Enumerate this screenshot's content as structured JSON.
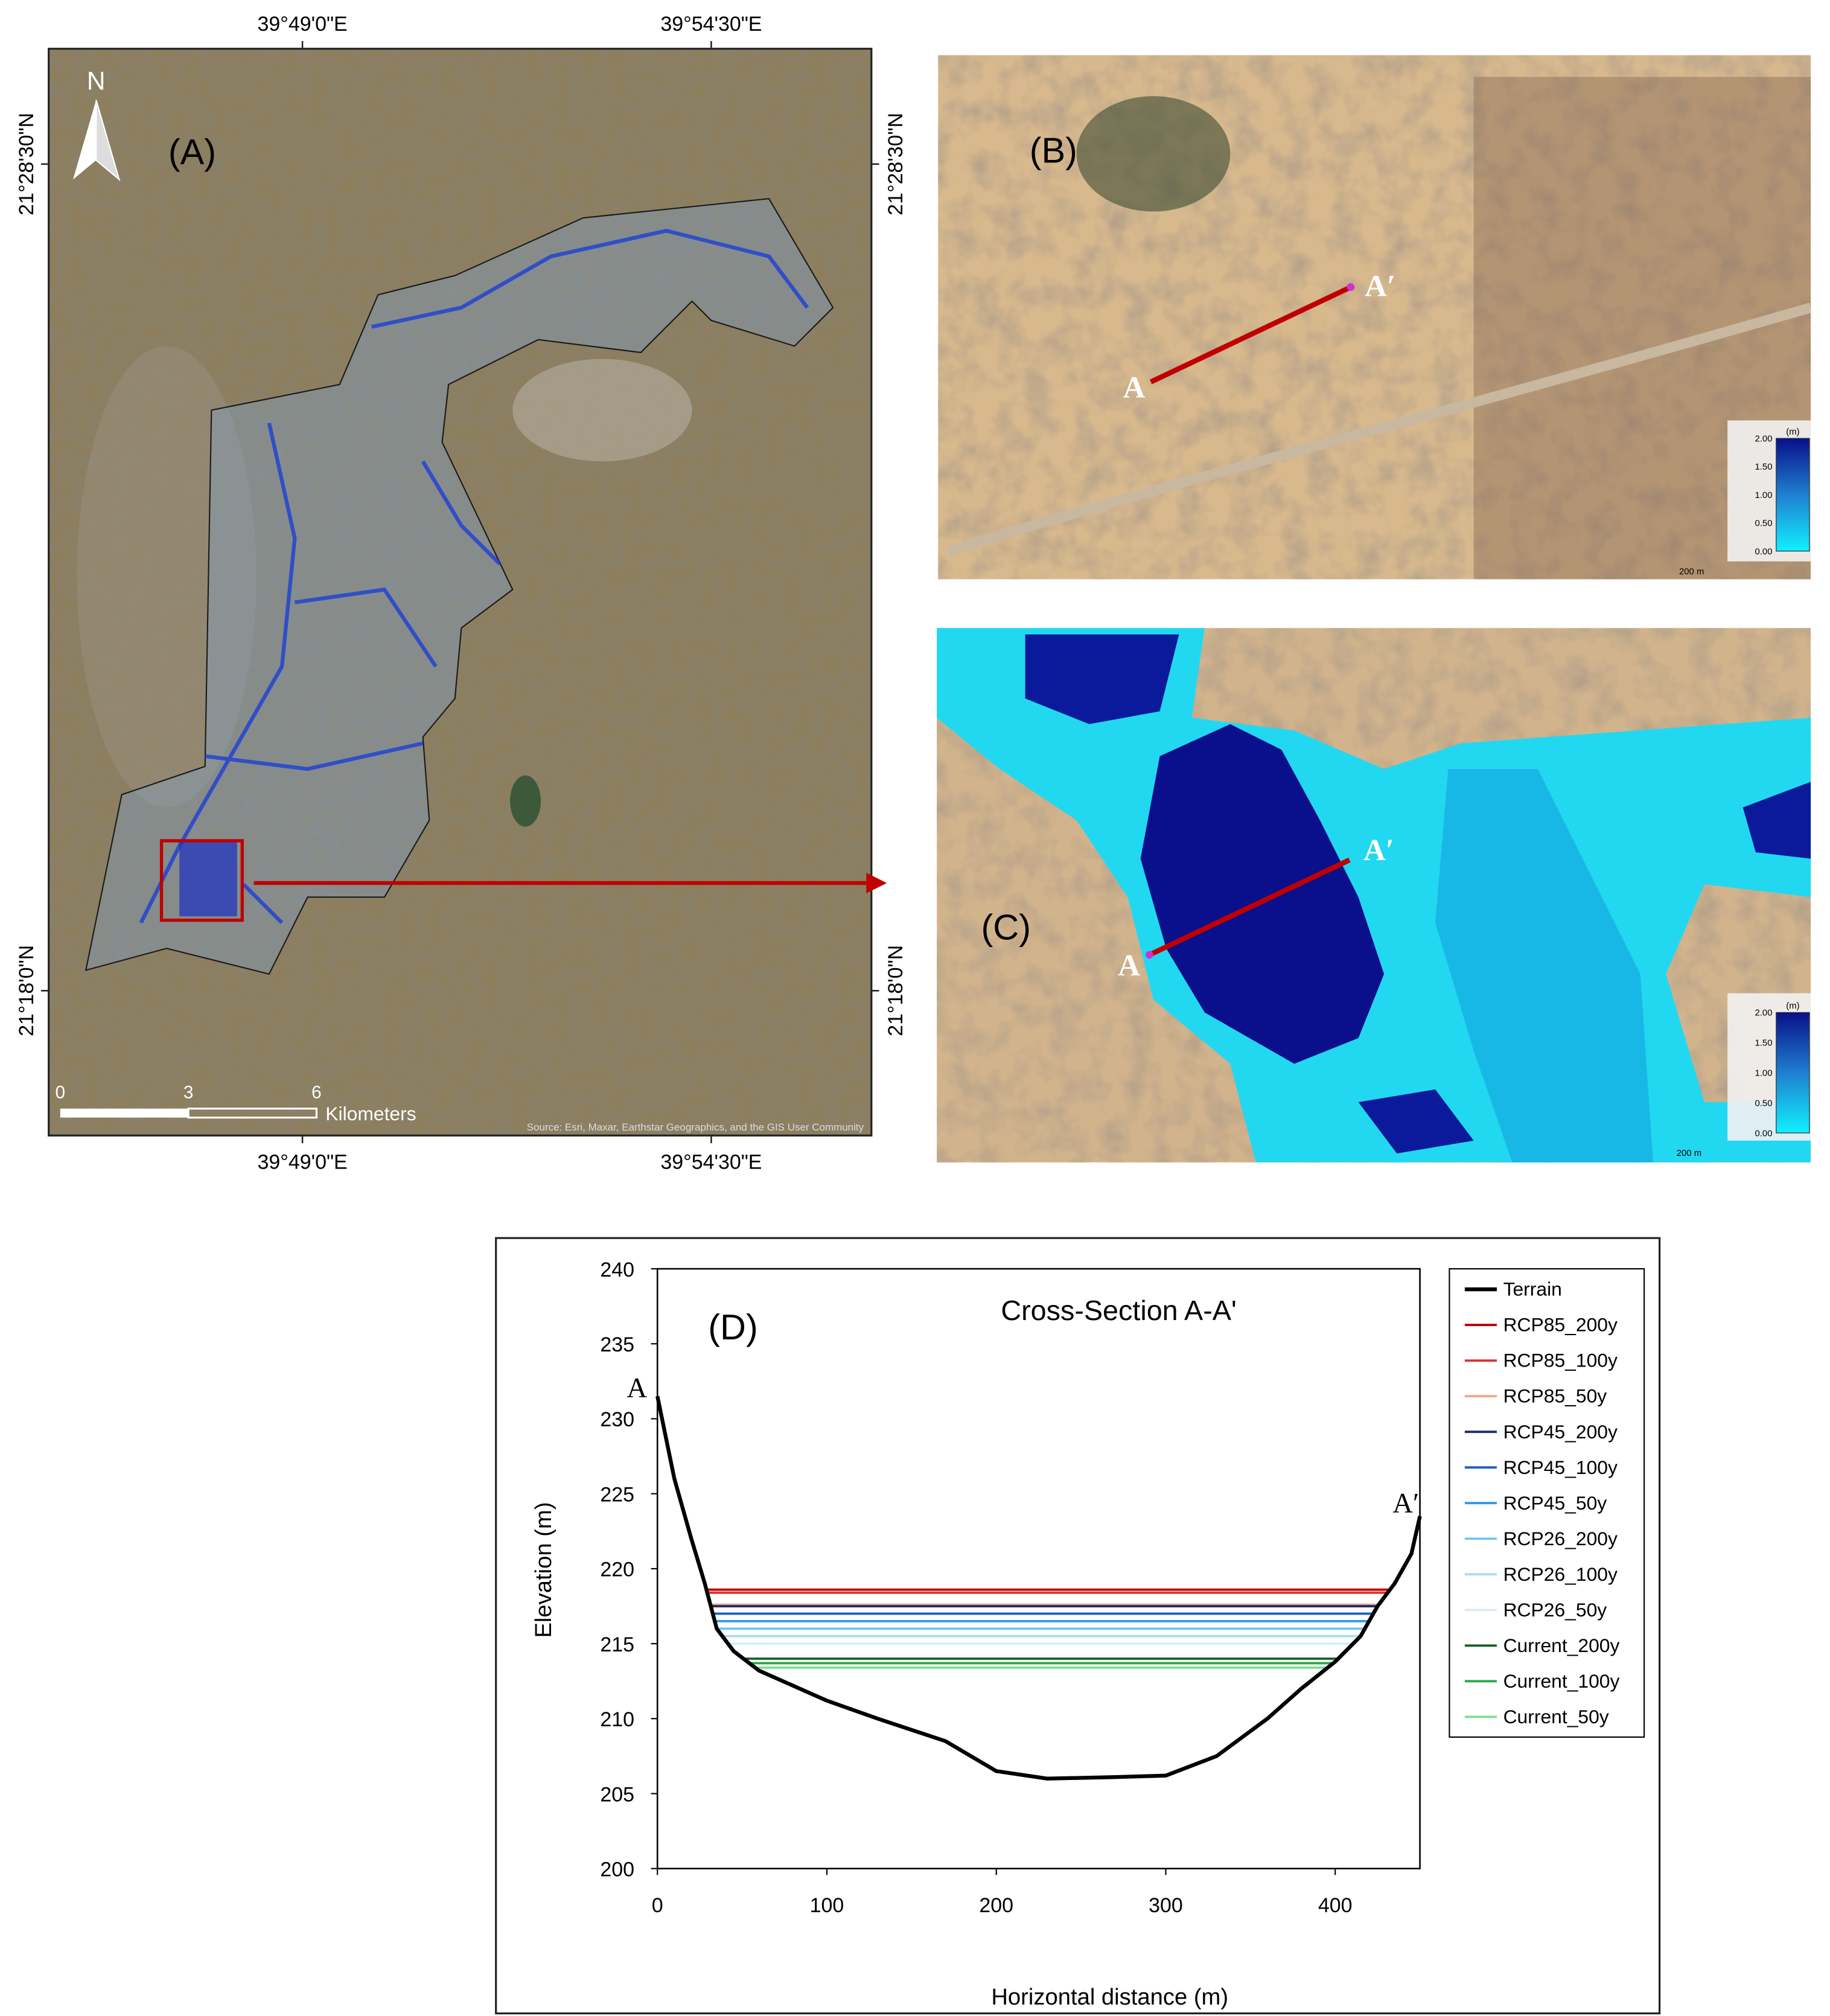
{
  "panel_a": {
    "label": "(A)",
    "north": "N",
    "lon_ticks": [
      "39°49'0\"E",
      "39°54'30\"E"
    ],
    "lat_ticks": [
      "21°28'30\"N",
      "21°18'0\"N"
    ],
    "scale_ticks": [
      "0",
      "3",
      "6"
    ],
    "scale_unit": "Kilometers",
    "attribution": "Source: Esri, Maxar, Earthstar Geographics, and the GIS User Community"
  },
  "panel_b": {
    "label": "(B)",
    "point_a": "A",
    "point_a_prime": "A′",
    "legend_unit": "(m)",
    "legend_ticks": [
      "2.00",
      "1.50",
      "1.00",
      "0.50",
      "0.00"
    ],
    "scale": "200 m"
  },
  "panel_c": {
    "label": "(C)",
    "point_a": "A",
    "point_a_prime": "A′",
    "legend_unit": "(m)",
    "legend_ticks": [
      "2.00",
      "1.50",
      "1.00",
      "0.50",
      "0.00"
    ],
    "scale": "200 m"
  },
  "chart_data": {
    "type": "line",
    "title": "Cross-Section A-A'",
    "panel_label": "(D)",
    "annotations": [
      "A",
      "A′"
    ],
    "x_label": "Horizontal distance (m)",
    "y_label": "Elevation (m)",
    "xlim": [
      0,
      450
    ],
    "xticks": [
      0,
      100,
      200,
      300,
      400
    ],
    "ylim": [
      200,
      240
    ],
    "yticks": [
      200,
      205,
      210,
      215,
      220,
      225,
      230,
      235,
      240
    ],
    "grid": false,
    "legend": "right",
    "series": [
      {
        "name": "Terrain",
        "color": "#000000",
        "x": [
          0,
          10,
          20,
          28,
          35,
          45,
          60,
          80,
          100,
          130,
          170,
          200,
          230,
          270,
          300,
          330,
          360,
          380,
          400,
          415,
          425,
          435,
          445,
          450
        ],
        "values": [
          231.5,
          226,
          222,
          219,
          216,
          214.5,
          213.2,
          212.2,
          211.2,
          210,
          208.5,
          206.5,
          206,
          206.1,
          206.2,
          207.5,
          210,
          212,
          213.8,
          215.5,
          217.5,
          219,
          221,
          223.5
        ]
      },
      {
        "name": "RCP85_200y",
        "color": "#c00000",
        "x": [
          29,
          432.3
        ],
        "values": [
          218.6,
          218.6
        ]
      },
      {
        "name": "RCP85_100y",
        "color": "#e03030",
        "x": [
          29.4,
          431
        ],
        "values": [
          218.4,
          218.4
        ]
      },
      {
        "name": "RCP85_50y",
        "color": "#f4a582",
        "x": [
          31,
          425.7
        ],
        "values": [
          217.6,
          217.6
        ]
      },
      {
        "name": "RCP45_200y",
        "color": "#1f2a6b",
        "x": [
          31.5,
          425
        ],
        "values": [
          217.5,
          217.5
        ]
      },
      {
        "name": "RCP45_100y",
        "color": "#1f5fbf",
        "x": [
          32.7,
          422.5
        ],
        "values": [
          217,
          217
        ]
      },
      {
        "name": "RCP45_50y",
        "color": "#2e9be8",
        "x": [
          33.8,
          420
        ],
        "values": [
          216.5,
          216.5
        ]
      },
      {
        "name": "RCP26_200y",
        "color": "#6ec6f0",
        "x": [
          35,
          417.5
        ],
        "values": [
          216,
          216
        ]
      },
      {
        "name": "RCP26_100y",
        "color": "#a8dcf3",
        "x": [
          38.3,
          415
        ],
        "values": [
          215.5,
          215.5
        ]
      },
      {
        "name": "RCP26_50y",
        "color": "#d6ecf8",
        "x": [
          41.7,
          410.6
        ],
        "values": [
          215,
          215
        ]
      },
      {
        "name": "Current_200y",
        "color": "#1a5e2a",
        "x": [
          50.8,
          401.8
        ],
        "values": [
          214,
          214
        ]
      },
      {
        "name": "Current_100y",
        "color": "#2aa84a",
        "x": [
          54.2,
          398.9
        ],
        "values": [
          213.7,
          213.7
        ]
      },
      {
        "name": "Current_50y",
        "color": "#7de08f",
        "x": [
          57.7,
          395.6
        ],
        "values": [
          213.4,
          213.4
        ]
      }
    ]
  }
}
